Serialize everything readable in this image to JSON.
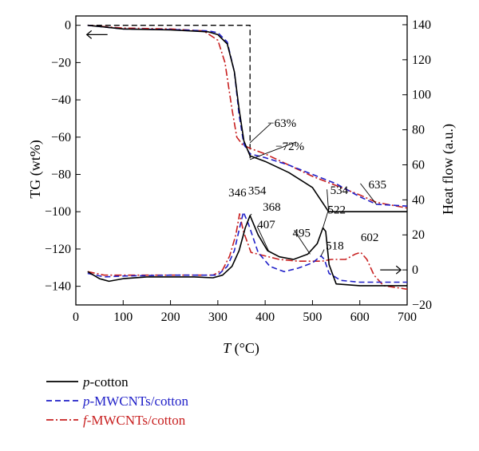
{
  "chart_data": {
    "type": "line",
    "xlabel": "T (°C)",
    "xlabel_var": "T",
    "xlabel_unit": "(°C)",
    "ylabel_left": "TG (wt%)",
    "ylabel_right": "Heat flow (a.u.)",
    "xlim": [
      0,
      700
    ],
    "ylim_left": [
      -150,
      5
    ],
    "ylim_right": [
      -20,
      145
    ],
    "x_ticks": [
      0,
      100,
      200,
      300,
      400,
      500,
      600,
      700
    ],
    "y_left_ticks": [
      0,
      -20,
      -40,
      -60,
      -80,
      -100,
      -120,
      -140
    ],
    "y_left_tick_labels": [
      "0",
      "−20",
      "−40",
      "−60",
      "−80",
      "−100",
      "−120",
      "−140"
    ],
    "y_right_ticks": [
      140,
      120,
      100,
      80,
      60,
      40,
      20,
      0,
      -20
    ],
    "y_right_tick_labels": [
      "140",
      "120",
      "100",
      "80",
      "60",
      "40",
      "20",
      "0",
      "−20"
    ],
    "grid": false,
    "legend_position": "bottom-left, below the plot",
    "series": [
      {
        "name": "p-cotton",
        "name_prefix": "p",
        "name_suffix": "-cotton",
        "color": "#000000",
        "dash": "solid",
        "tg": [
          [
            25,
            0
          ],
          [
            100,
            -2
          ],
          [
            200,
            -2.5
          ],
          [
            280,
            -3.5
          ],
          [
            300,
            -5
          ],
          [
            320,
            -10
          ],
          [
            335,
            -25
          ],
          [
            345,
            -45
          ],
          [
            355,
            -62
          ],
          [
            368,
            -70
          ],
          [
            400,
            -73
          ],
          [
            450,
            -79
          ],
          [
            500,
            -87
          ],
          [
            534,
            -100
          ],
          [
            600,
            -100
          ],
          [
            700,
            -100
          ]
        ],
        "heat_flow": [
          [
            25,
            -1
          ],
          [
            50,
            -5
          ],
          [
            70,
            -6.5
          ],
          [
            100,
            -5
          ],
          [
            150,
            -4
          ],
          [
            200,
            -4
          ],
          [
            250,
            -4
          ],
          [
            290,
            -4.5
          ],
          [
            310,
            -3
          ],
          [
            330,
            2
          ],
          [
            345,
            11
          ],
          [
            358,
            24
          ],
          [
            368,
            31
          ],
          [
            385,
            20
          ],
          [
            405,
            11
          ],
          [
            430,
            7.5
          ],
          [
            460,
            6
          ],
          [
            490,
            9
          ],
          [
            510,
            15
          ],
          [
            522,
            24
          ],
          [
            528,
            22
          ],
          [
            535,
            3
          ],
          [
            550,
            -8
          ],
          [
            600,
            -9
          ],
          [
            700,
            -9
          ]
        ]
      },
      {
        "name": "p-MWCNTs/cotton",
        "name_prefix": "p",
        "name_suffix": "-MWCNTs/cotton",
        "color": "#2020c8",
        "dash": "dashed",
        "tg": [
          [
            25,
            0
          ],
          [
            100,
            -2
          ],
          [
            200,
            -2.3
          ],
          [
            280,
            -3
          ],
          [
            300,
            -4
          ],
          [
            320,
            -9
          ],
          [
            335,
            -25
          ],
          [
            345,
            -48
          ],
          [
            355,
            -64
          ],
          [
            368,
            -69
          ],
          [
            400,
            -71
          ],
          [
            450,
            -75
          ],
          [
            500,
            -80
          ],
          [
            550,
            -85
          ],
          [
            600,
            -92
          ],
          [
            635,
            -96
          ],
          [
            700,
            -97
          ]
        ],
        "heat_flow": [
          [
            25,
            -2
          ],
          [
            60,
            -4
          ],
          [
            100,
            -3.5
          ],
          [
            200,
            -3
          ],
          [
            300,
            -3
          ],
          [
            320,
            2
          ],
          [
            335,
            11
          ],
          [
            346,
            24
          ],
          [
            354,
            33
          ],
          [
            365,
            26
          ],
          [
            385,
            10
          ],
          [
            410,
            2
          ],
          [
            440,
            -1
          ],
          [
            470,
            1
          ],
          [
            500,
            4
          ],
          [
            518,
            8
          ],
          [
            525,
            6
          ],
          [
            535,
            -2
          ],
          [
            560,
            -6
          ],
          [
            600,
            -7
          ],
          [
            700,
            -7
          ]
        ]
      },
      {
        "name": "f-MWCNTs/cotton",
        "name_prefix": "f",
        "name_suffix": "-MWCNTs/cotton",
        "color": "#c82020",
        "dash": "dashdot",
        "tg": [
          [
            25,
            0
          ],
          [
            100,
            -1.5
          ],
          [
            200,
            -2
          ],
          [
            270,
            -3
          ],
          [
            300,
            -8
          ],
          [
            315,
            -20
          ],
          [
            330,
            -45
          ],
          [
            340,
            -60
          ],
          [
            352,
            -64
          ],
          [
            368,
            -66
          ],
          [
            400,
            -69
          ],
          [
            450,
            -75
          ],
          [
            500,
            -81
          ],
          [
            550,
            -86
          ],
          [
            600,
            -91
          ],
          [
            635,
            -95
          ],
          [
            700,
            -98
          ]
        ],
        "heat_flow": [
          [
            25,
            -1
          ],
          [
            60,
            -3
          ],
          [
            100,
            -3
          ],
          [
            200,
            -3
          ],
          [
            290,
            -3
          ],
          [
            310,
            0
          ],
          [
            325,
            8
          ],
          [
            338,
            20
          ],
          [
            346,
            32
          ],
          [
            354,
            22
          ],
          [
            370,
            10
          ],
          [
            400,
            8
          ],
          [
            430,
            6
          ],
          [
            470,
            5
          ],
          [
            500,
            5
          ],
          [
            520,
            5
          ],
          [
            540,
            6
          ],
          [
            570,
            6
          ],
          [
            590,
            9
          ],
          [
            602,
            10
          ],
          [
            615,
            6
          ],
          [
            630,
            -3
          ],
          [
            650,
            -9
          ],
          [
            700,
            -11
          ]
        ]
      }
    ],
    "step_line": {
      "dash": "dashed",
      "color": "#000000",
      "points": [
        [
          25,
          0
        ],
        [
          368,
          0
        ],
        [
          368,
          -72
        ]
      ]
    },
    "annotations": [
      {
        "label": "−63%",
        "x": 368,
        "y": -63,
        "axis": "left"
      },
      {
        "label": "−72%",
        "x": 368,
        "y": -72,
        "axis": "left"
      },
      {
        "label": "534",
        "x": 534,
        "y": -100,
        "axis": "left"
      },
      {
        "label": "635",
        "x": 635,
        "y": -96,
        "axis": "left"
      },
      {
        "label": "346",
        "x": 346,
        "y": 32,
        "axis": "right"
      },
      {
        "label": "354",
        "x": 354,
        "y": 33,
        "axis": "right"
      },
      {
        "label": "368",
        "x": 368,
        "y": 31,
        "axis": "right"
      },
      {
        "label": "407",
        "x": 407,
        "y": 11,
        "axis": "right"
      },
      {
        "label": "495",
        "x": 495,
        "y": 9,
        "axis": "right"
      },
      {
        "label": "522",
        "x": 522,
        "y": 24,
        "axis": "right"
      },
      {
        "label": "518",
        "x": 518,
        "y": 8,
        "axis": "right"
      },
      {
        "label": "602",
        "x": 602,
        "y": 10,
        "axis": "right"
      }
    ],
    "axis_arrows": [
      {
        "direction": "left",
        "axis": "left",
        "x": 45,
        "y": -5
      },
      {
        "direction": "right",
        "axis": "right",
        "x": 665,
        "y": 0
      }
    ]
  }
}
